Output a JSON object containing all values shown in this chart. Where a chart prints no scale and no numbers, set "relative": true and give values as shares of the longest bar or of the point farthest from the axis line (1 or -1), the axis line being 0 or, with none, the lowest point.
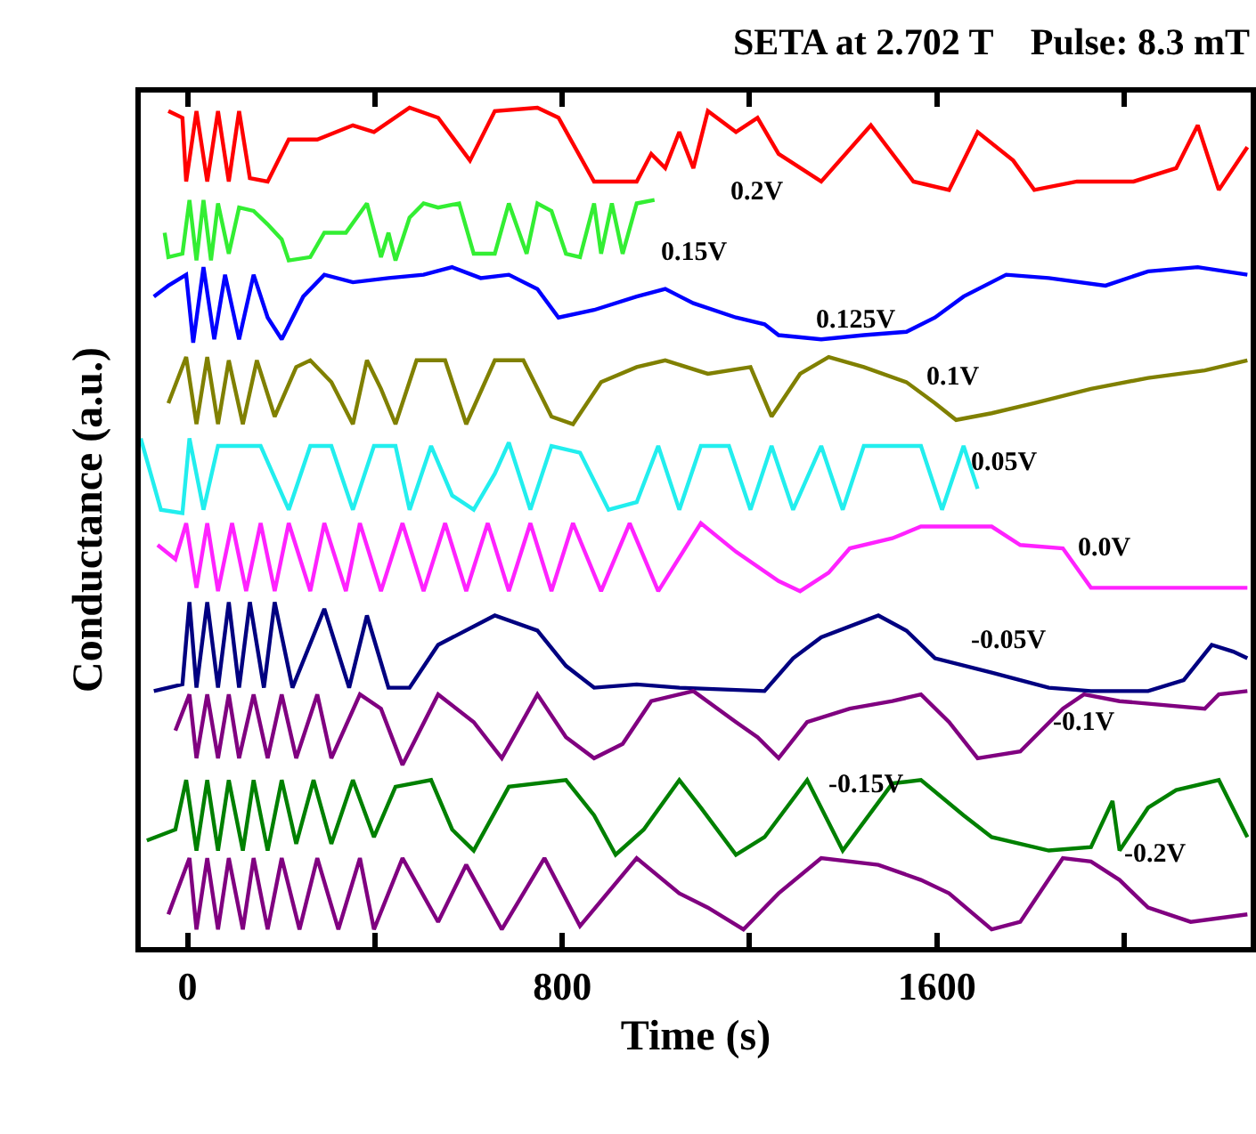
{
  "chart_data": {
    "type": "line",
    "title": "SETA at 2.702 T    Pulse: 8.3 mT",
    "xlabel": "Time (s)",
    "ylabel": "Conductance (a.u.)",
    "relative": true,
    "tick_labels": "x",
    "grid": false,
    "marker": "none",
    "line_style": "solid",
    "xlim": [
      -100,
      2270
    ],
    "xticks": [
      0,
      {
        "value": 400,
        "label": null
      },
      800,
      {
        "value": 1200,
        "label": null
      },
      1600,
      {
        "value": 2000,
        "label": null
      }
    ],
    "series": [
      {
        "color": "#ff0000",
        "x": [
          -41,
          -11,
          -3,
          19,
          42,
          65,
          88,
          110,
          133,
          171,
          216,
          277,
          353,
          398,
          474,
          535,
          603,
          656,
          747,
          792,
          868,
          959,
          990,
          1020,
          1050,
          1080,
          1111,
          1171,
          1217,
          1262,
          1353,
          1459,
          1550,
          1626,
          1687,
          1763,
          1808,
          1899,
          2020,
          2111,
          2157,
          2202,
          2263
        ],
        "values": [
          0.996,
          0.988,
          0.912,
          0.996,
          0.912,
          0.996,
          0.912,
          0.996,
          0.916,
          0.912,
          0.962,
          0.962,
          0.979,
          0.971,
          1,
          0.988,
          0.937,
          0.996,
          1,
          0.988,
          0.912,
          0.912,
          0.945,
          0.928,
          0.971,
          0.928,
          0.996,
          0.971,
          0.988,
          0.945,
          0.912,
          0.979,
          0.912,
          0.902,
          0.971,
          0.937,
          0.902,
          0.912,
          0.912,
          0.928,
          0.979,
          0.902,
          0.953
        ]
      },
      {
        "color": "#33ee33",
        "x": [
          -49,
          -41,
          -11,
          4,
          19,
          34,
          50,
          65,
          88,
          110,
          141,
          171,
          201,
          216,
          262,
          292,
          338,
          383,
          413,
          429,
          444,
          474,
          504,
          535,
          580,
          611,
          656,
          686,
          724,
          747,
          777,
          808,
          838,
          868,
          883,
          906,
          929,
          959,
          997
        ],
        "values": [
          0.851,
          0.822,
          0.826,
          0.89,
          0.818,
          0.89,
          0.818,
          0.886,
          0.826,
          0.881,
          0.877,
          0.861,
          0.843,
          0.818,
          0.822,
          0.851,
          0.851,
          0.886,
          0.822,
          0.851,
          0.818,
          0.869,
          0.886,
          0.881,
          0.886,
          0.826,
          0.826,
          0.886,
          0.826,
          0.886,
          0.877,
          0.826,
          0.822,
          0.886,
          0.826,
          0.886,
          0.826,
          0.886,
          0.89
        ]
      },
      {
        "color": "#0000ff",
        "x": [
          -72,
          -41,
          -3,
          12,
          34,
          57,
          80,
          110,
          141,
          171,
          201,
          247,
          292,
          353,
          429,
          504,
          565,
          626,
          686,
          747,
          792,
          868,
          959,
          1020,
          1080,
          1171,
          1232,
          1262,
          1353,
          1444,
          1535,
          1596,
          1657,
          1748,
          1839,
          1960,
          2051,
          2157,
          2263
        ],
        "values": [
          0.775,
          0.788,
          0.801,
          0.72,
          0.81,
          0.724,
          0.801,
          0.724,
          0.801,
          0.75,
          0.724,
          0.775,
          0.801,
          0.792,
          0.797,
          0.801,
          0.81,
          0.797,
          0.801,
          0.784,
          0.75,
          0.759,
          0.775,
          0.784,
          0.767,
          0.75,
          0.742,
          0.729,
          0.724,
          0.729,
          0.733,
          0.75,
          0.775,
          0.801,
          0.797,
          0.788,
          0.805,
          0.81,
          0.801
        ]
      },
      {
        "color": "#808000",
        "x": [
          -41,
          -3,
          19,
          42,
          65,
          88,
          118,
          148,
          186,
          232,
          262,
          307,
          353,
          383,
          413,
          444,
          489,
          550,
          595,
          656,
          717,
          777,
          823,
          883,
          959,
          1020,
          1111,
          1202,
          1247,
          1308,
          1369,
          1444,
          1535,
          1596,
          1641,
          1717,
          1808,
          1929,
          2051,
          2172,
          2263
        ],
        "values": [
          0.648,
          0.703,
          0.623,
          0.703,
          0.623,
          0.699,
          0.623,
          0.699,
          0.632,
          0.691,
          0.699,
          0.673,
          0.623,
          0.699,
          0.665,
          0.623,
          0.699,
          0.699,
          0.623,
          0.699,
          0.699,
          0.632,
          0.623,
          0.673,
          0.691,
          0.699,
          0.683,
          0.691,
          0.632,
          0.683,
          0.703,
          0.691,
          0.673,
          0.648,
          0.628,
          0.636,
          0.648,
          0.665,
          0.678,
          0.687,
          0.699
        ]
      },
      {
        "color": "#22eeee",
        "x": [
          -100,
          -57,
          -11,
          4,
          34,
          65,
          95,
          125,
          156,
          216,
          262,
          307,
          353,
          398,
          444,
          474,
          520,
          565,
          611,
          656,
          686,
          732,
          777,
          838,
          899,
          959,
          1005,
          1050,
          1096,
          1156,
          1202,
          1247,
          1293,
          1353,
          1399,
          1444,
          1505,
          1566,
          1611,
          1657,
          1687
        ],
        "values": [
          0.606,
          0.521,
          0.517,
          0.606,
          0.521,
          0.597,
          0.597,
          0.597,
          0.597,
          0.521,
          0.597,
          0.597,
          0.521,
          0.597,
          0.597,
          0.521,
          0.597,
          0.538,
          0.521,
          0.564,
          0.601,
          0.521,
          0.597,
          0.589,
          0.521,
          0.53,
          0.597,
          0.521,
          0.597,
          0.597,
          0.521,
          0.597,
          0.521,
          0.597,
          0.521,
          0.597,
          0.597,
          0.597,
          0.521,
          0.597,
          0.546
        ]
      },
      {
        "color": "#ff22ff",
        "x": [
          -64,
          -26,
          -3,
          19,
          42,
          65,
          95,
          125,
          156,
          186,
          216,
          262,
          292,
          338,
          368,
          413,
          459,
          504,
          550,
          595,
          641,
          686,
          732,
          777,
          823,
          883,
          944,
          1005,
          1096,
          1171,
          1262,
          1308,
          1369,
          1414,
          1505,
          1566,
          1717,
          1778,
          1869,
          1929,
          2020,
          2263
        ],
        "values": [
          0.479,
          0.462,
          0.505,
          0.428,
          0.505,
          0.424,
          0.505,
          0.424,
          0.505,
          0.424,
          0.505,
          0.424,
          0.505,
          0.424,
          0.505,
          0.424,
          0.505,
          0.424,
          0.505,
          0.424,
          0.505,
          0.424,
          0.505,
          0.424,
          0.505,
          0.424,
          0.505,
          0.424,
          0.505,
          0.471,
          0.436,
          0.424,
          0.446,
          0.475,
          0.487,
          0.501,
          0.501,
          0.479,
          0.475,
          0.428,
          0.428,
          0.428
        ]
      },
      {
        "color": "#000080",
        "x": [
          -72,
          -11,
          4,
          19,
          42,
          65,
          88,
          110,
          133,
          163,
          186,
          224,
          292,
          345,
          383,
          429,
          474,
          535,
          656,
          747,
          808,
          868,
          959,
          1050,
          1232,
          1293,
          1353,
          1475,
          1535,
          1596,
          1717,
          1839,
          1929,
          2051,
          2127,
          2187,
          2233,
          2263
        ],
        "values": [
          0.305,
          0.313,
          0.411,
          0.309,
          0.411,
          0.309,
          0.411,
          0.309,
          0.411,
          0.309,
          0.411,
          0.309,
          0.403,
          0.309,
          0.395,
          0.309,
          0.309,
          0.36,
          0.395,
          0.377,
          0.335,
          0.309,
          0.313,
          0.309,
          0.305,
          0.344,
          0.369,
          0.395,
          0.377,
          0.344,
          0.327,
          0.309,
          0.305,
          0.305,
          0.318,
          0.36,
          0.352,
          0.344
        ]
      },
      {
        "color": "#800080",
        "x": [
          -26,
          4,
          19,
          42,
          65,
          88,
          110,
          141,
          171,
          201,
          232,
          277,
          307,
          368,
          413,
          459,
          535,
          611,
          671,
          747,
          808,
          868,
          929,
          990,
          1080,
          1171,
          1217,
          1262,
          1323,
          1414,
          1505,
          1566,
          1626,
          1687,
          1778,
          1869,
          1914,
          1990,
          2172,
          2202,
          2263
        ],
        "values": [
          0.258,
          0.301,
          0.225,
          0.301,
          0.225,
          0.301,
          0.225,
          0.301,
          0.225,
          0.301,
          0.225,
          0.301,
          0.225,
          0.301,
          0.284,
          0.217,
          0.301,
          0.268,
          0.225,
          0.301,
          0.25,
          0.225,
          0.242,
          0.293,
          0.305,
          0.268,
          0.25,
          0.225,
          0.268,
          0.284,
          0.293,
          0.301,
          0.268,
          0.225,
          0.233,
          0.284,
          0.301,
          0.293,
          0.284,
          0.301,
          0.305
        ]
      },
      {
        "color": "#008000",
        "x": [
          -87,
          -26,
          -3,
          19,
          42,
          65,
          88,
          118,
          141,
          171,
          201,
          232,
          269,
          307,
          353,
          398,
          444,
          520,
          565,
          611,
          686,
          808,
          868,
          914,
          974,
          1050,
          1096,
          1171,
          1232,
          1323,
          1399,
          1505,
          1566,
          1657,
          1717,
          1839,
          1929,
          1975,
          1990,
          2051,
          2111,
          2202,
          2263
        ],
        "values": [
          0.127,
          0.14,
          0.199,
          0.115,
          0.199,
          0.115,
          0.199,
          0.115,
          0.199,
          0.115,
          0.199,
          0.123,
          0.199,
          0.123,
          0.199,
          0.131,
          0.191,
          0.199,
          0.14,
          0.115,
          0.191,
          0.199,
          0.157,
          0.11,
          0.14,
          0.199,
          0.166,
          0.11,
          0.131,
          0.199,
          0.115,
          0.195,
          0.199,
          0.157,
          0.131,
          0.115,
          0.119,
          0.174,
          0.115,
          0.166,
          0.187,
          0.199,
          0.131
        ]
      },
      {
        "color": "#800080",
        "x": [
          -41,
          4,
          19,
          42,
          65,
          88,
          118,
          141,
          171,
          201,
          239,
          277,
          322,
          368,
          398,
          459,
          535,
          595,
          671,
          762,
          838,
          959,
          1050,
          1111,
          1187,
          1262,
          1353,
          1475,
          1566,
          1626,
          1717,
          1778,
          1869,
          1929,
          1990,
          2051,
          2142,
          2263
        ],
        "values": [
          0.039,
          0.106,
          0.021,
          0.106,
          0.021,
          0.106,
          0.021,
          0.106,
          0.021,
          0.106,
          0.021,
          0.106,
          0.021,
          0.106,
          0.021,
          0.106,
          0.03,
          0.098,
          0.021,
          0.106,
          0.025,
          0.106,
          0.064,
          0.047,
          0.021,
          0.064,
          0.106,
          0.098,
          0.08,
          0.064,
          0.021,
          0.03,
          0.106,
          0.102,
          0.08,
          0.047,
          0.03,
          0.039
        ]
      }
    ],
    "annotations": [
      "0.2V",
      "0.15V",
      "0.125V",
      "0.1V",
      "0.05V",
      "0.0V",
      "-0.05V",
      "-0.1V",
      "-0.15V",
      "-0.2V"
    ]
  }
}
